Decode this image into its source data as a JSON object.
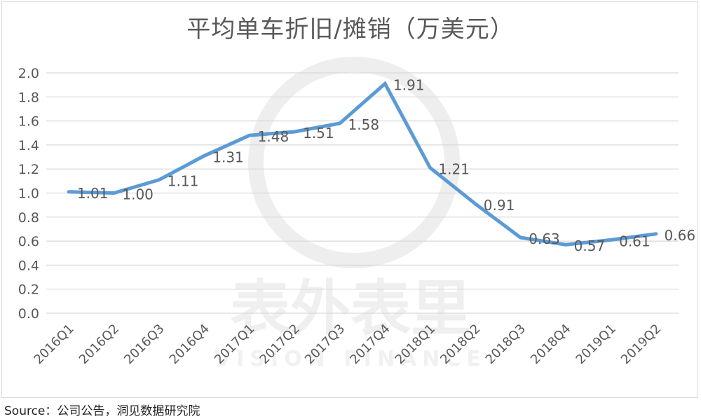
{
  "title": "平均单车折旧/摊销（万美元）",
  "source": "Source：公司公告，洞见数据研究院",
  "watermark": {
    "text": "表外表里",
    "subtext": "VISION FINANCE"
  },
  "colors": {
    "line": "#5b9bd5",
    "grid": "#d9d9d9",
    "text": "#595959"
  },
  "chart_data": {
    "type": "line",
    "title": "平均单车折旧/摊销（万美元）",
    "categories": [
      "2016Q1",
      "2016Q2",
      "2016Q3",
      "2016Q4",
      "2017Q1",
      "2017Q2",
      "2017Q3",
      "2017Q4",
      "2018Q1",
      "2018Q2",
      "2018Q3",
      "2018Q4",
      "2019Q1",
      "2019Q2"
    ],
    "series": [
      {
        "values": [
          1.01,
          1.0,
          1.11,
          1.31,
          1.48,
          1.51,
          1.58,
          1.91,
          1.21,
          0.91,
          0.63,
          0.57,
          0.61,
          0.66
        ]
      }
    ],
    "data_labels": [
      "1.01",
      "1.00",
      "1.11",
      "1.31",
      "1.48",
      "1.51",
      "1.58",
      "1.91",
      "1.21",
      "0.91",
      "0.63",
      "0.57",
      "0.61",
      "0.66"
    ],
    "y_ticks": [
      "0.0",
      "0.2",
      "0.4",
      "0.6",
      "0.8",
      "1.0",
      "1.2",
      "1.4",
      "1.6",
      "1.8",
      "2.0"
    ],
    "ylim": [
      0,
      2.0
    ],
    "grid": true,
    "legend": "none"
  }
}
